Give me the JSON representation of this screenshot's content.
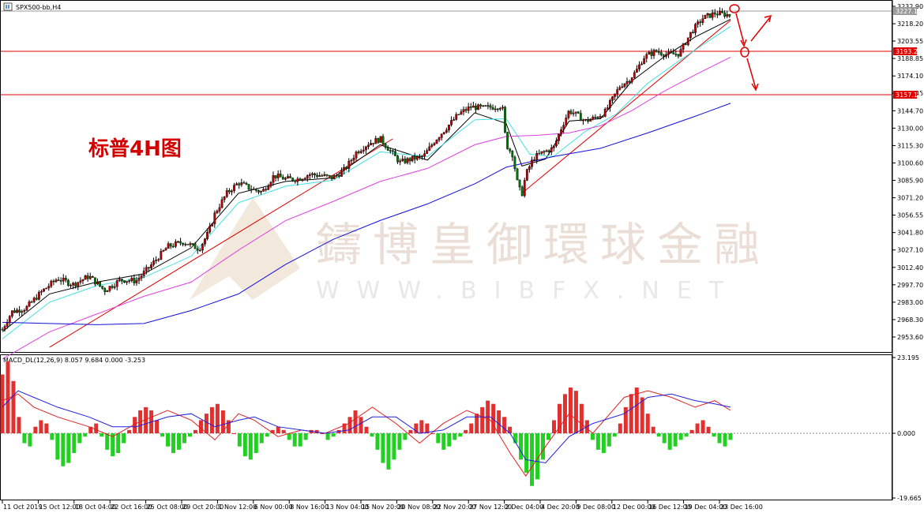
{
  "window": {
    "symbol_title": "SPX500-bb,H4",
    "icon": "chart-window-icon"
  },
  "annotation": "标普4H图",
  "watermark": {
    "brand": "鑄博皇御環球金融",
    "url": "WWW.BIBFX.NET"
  },
  "price_axis": {
    "ticks": [
      "3232.90",
      "3218.20",
      "3203.55",
      "3188.85",
      "3174.10",
      "3159.45",
      "3144.70",
      "3130.00",
      "3115.30",
      "3100.60",
      "3085.90",
      "3071.20",
      "3056.55",
      "3041.80",
      "3027.10",
      "3012.40",
      "2997.70",
      "2983.00",
      "2968.30",
      "2953.60"
    ],
    "current_price": "3227.18",
    "resistance_label": "3193.21",
    "support_label": "3157.14"
  },
  "macd_panel": {
    "title": "MACD_DL(12,26,9) 8.057 9.684 0.000 -3.253",
    "ticks": [
      "23.195",
      "0.000",
      "-19.665"
    ]
  },
  "time_axis": {
    "labels": [
      "11 Oct 2019",
      "15 Oct 12:00",
      "18 Oct 04:00",
      "22 Oct 16:00",
      "25 Oct 08:00",
      "29 Oct 20:00",
      "1 Nov 12:00",
      "6 Nov 00:00",
      "8 Nov 16:00",
      "13 Nov 04:00",
      "15 Nov 20:00",
      "20 Nov 08:00",
      "22 Nov 20:00",
      "27 Nov 12:00",
      "2 Dec 04:00",
      "4 Dec 20:00",
      "9 Dec 08:00",
      "12 Dec 00:00",
      "16 Dec 12:00",
      "19 Dec 04:00",
      "23 Dec 16:00"
    ]
  },
  "chart_data": {
    "type": "line",
    "symbol": "SPX500-bb",
    "timeframe": "H4",
    "ylim": [
      2945,
      3236
    ],
    "horizontal_levels": [
      3193.21,
      3157.14
    ],
    "price_path": [
      [
        0,
        2960
      ],
      [
        12,
        2975
      ],
      [
        30,
        2978
      ],
      [
        50,
        2992
      ],
      [
        70,
        3003
      ],
      [
        90,
        2998
      ],
      [
        110,
        3005
      ],
      [
        130,
        2993
      ],
      [
        150,
        3002
      ],
      [
        170,
        3001
      ],
      [
        190,
        3015
      ],
      [
        210,
        3030
      ],
      [
        230,
        3034
      ],
      [
        250,
        3028
      ],
      [
        262,
        3042
      ],
      [
        270,
        3058
      ],
      [
        285,
        3075
      ],
      [
        300,
        3084
      ],
      [
        315,
        3079
      ],
      [
        330,
        3076
      ],
      [
        345,
        3090
      ],
      [
        360,
        3087
      ],
      [
        375,
        3087
      ],
      [
        390,
        3091
      ],
      [
        405,
        3090
      ],
      [
        420,
        3088
      ],
      [
        435,
        3095
      ],
      [
        450,
        3110
      ],
      [
        465,
        3117
      ],
      [
        480,
        3121
      ],
      [
        495,
        3109
      ],
      [
        505,
        3101
      ],
      [
        520,
        3104
      ],
      [
        535,
        3106
      ],
      [
        550,
        3120
      ],
      [
        565,
        3131
      ],
      [
        580,
        3142
      ],
      [
        595,
        3148
      ],
      [
        610,
        3147
      ],
      [
        625,
        3148
      ],
      [
        635,
        3149
      ],
      [
        640,
        3116
      ],
      [
        648,
        3108
      ],
      [
        655,
        3081
      ],
      [
        660,
        3074
      ],
      [
        665,
        3091
      ],
      [
        670,
        3098
      ],
      [
        675,
        3105
      ],
      [
        685,
        3109
      ],
      [
        700,
        3113
      ],
      [
        710,
        3130
      ],
      [
        720,
        3145
      ],
      [
        730,
        3141
      ],
      [
        740,
        3136
      ],
      [
        750,
        3138
      ],
      [
        765,
        3143
      ],
      [
        778,
        3158
      ],
      [
        785,
        3166
      ],
      [
        795,
        3170
      ],
      [
        805,
        3178
      ],
      [
        815,
        3190
      ],
      [
        830,
        3195
      ],
      [
        845,
        3192
      ],
      [
        860,
        3193
      ],
      [
        875,
        3211
      ],
      [
        890,
        3223
      ],
      [
        905,
        3227
      ],
      [
        920,
        3226
      ],
      [
        925,
        3225
      ]
    ],
    "ma_lines": [
      {
        "name": "fast",
        "color": "#000000",
        "points": [
          [
            0,
            2958
          ],
          [
            60,
            2990
          ],
          [
            120,
            3000
          ],
          [
            180,
            3007
          ],
          [
            240,
            3029
          ],
          [
            300,
            3075
          ],
          [
            360,
            3085
          ],
          [
            420,
            3088
          ],
          [
            480,
            3116
          ],
          [
            540,
            3103
          ],
          [
            600,
            3143
          ],
          [
            640,
            3134
          ],
          [
            660,
            3098
          ],
          [
            690,
            3104
          ],
          [
            720,
            3136
          ],
          [
            760,
            3138
          ],
          [
            800,
            3170
          ],
          [
            840,
            3190
          ],
          [
            880,
            3207
          ],
          [
            925,
            3222
          ]
        ]
      },
      {
        "name": "cyan",
        "color": "#40e0e0",
        "points": [
          [
            0,
            2952
          ],
          [
            60,
            2983
          ],
          [
            120,
            2997
          ],
          [
            180,
            3004
          ],
          [
            240,
            3022
          ],
          [
            300,
            3067
          ],
          [
            360,
            3081
          ],
          [
            420,
            3086
          ],
          [
            480,
            3110
          ],
          [
            540,
            3106
          ],
          [
            600,
            3137
          ],
          [
            640,
            3138
          ],
          [
            670,
            3108
          ],
          [
            700,
            3106
          ],
          [
            740,
            3127
          ],
          [
            780,
            3142
          ],
          [
            820,
            3168
          ],
          [
            860,
            3187
          ],
          [
            900,
            3205
          ],
          [
            925,
            3216
          ]
        ]
      },
      {
        "name": "magenta",
        "color": "#e040e0",
        "points": [
          [
            0,
            2935
          ],
          [
            60,
            2958
          ],
          [
            120,
            2973
          ],
          [
            180,
            2988
          ],
          [
            240,
            3000
          ],
          [
            300,
            3027
          ],
          [
            360,
            3052
          ],
          [
            420,
            3068
          ],
          [
            480,
            3085
          ],
          [
            540,
            3096
          ],
          [
            600,
            3116
          ],
          [
            640,
            3123
          ],
          [
            680,
            3124
          ],
          [
            720,
            3126
          ],
          [
            760,
            3132
          ],
          [
            800,
            3145
          ],
          [
            840,
            3161
          ],
          [
            880,
            3175
          ],
          [
            925,
            3190
          ]
        ]
      },
      {
        "name": "blue",
        "color": "#1010e0",
        "points": [
          [
            0,
            2966
          ],
          [
            60,
            2965
          ],
          [
            120,
            2964
          ],
          [
            180,
            2965
          ],
          [
            240,
            2976
          ],
          [
            300,
            2990
          ],
          [
            360,
            3015
          ],
          [
            420,
            3036
          ],
          [
            480,
            3052
          ],
          [
            540,
            3066
          ],
          [
            600,
            3083
          ],
          [
            640,
            3097
          ],
          [
            700,
            3106
          ],
          [
            760,
            3113
          ],
          [
            820,
            3126
          ],
          [
            880,
            3140
          ],
          [
            925,
            3151
          ]
        ]
      }
    ],
    "trendlines": [
      [
        60,
        2945,
        496,
        3121
      ],
      [
        660,
        3075,
        925,
        3221
      ]
    ],
    "macd_ylim": [
      -19.665,
      23.195
    ],
    "macd_hist": [
      18,
      22,
      16,
      5,
      -3,
      -4,
      2,
      4,
      3,
      -2,
      -8,
      -10,
      -9,
      -6,
      -3,
      -1,
      2,
      3,
      -1,
      -5,
      -7,
      -6,
      -3,
      1,
      5,
      7,
      8,
      7,
      4,
      -1,
      -4,
      -6,
      -5,
      -3,
      -1,
      1,
      4,
      6,
      8,
      9,
      7,
      4,
      0,
      -4,
      -7,
      -8,
      -6,
      -3,
      -1,
      1,
      2,
      1,
      -2,
      -4,
      -4,
      -2,
      1,
      1,
      0,
      -2,
      -1,
      1,
      3,
      5,
      7,
      5,
      2,
      -1,
      -5,
      -9,
      -11,
      -8,
      -5,
      -2,
      1,
      3,
      4,
      3,
      0,
      -3,
      -5,
      -4,
      -2,
      -1,
      1,
      3,
      6,
      8,
      10,
      9,
      7,
      5,
      2,
      -3,
      -8,
      -12,
      -16,
      -14,
      -8,
      -2,
      4,
      9,
      12,
      14,
      13,
      9,
      4,
      -2,
      -5,
      -6,
      -4,
      -1,
      3,
      8,
      12,
      14,
      11,
      6,
      2,
      -1,
      -3,
      -5,
      -4,
      -2,
      -1,
      1,
      3,
      4,
      2,
      -1,
      -3,
      -4,
      -2
    ],
    "macd_lines": {
      "macd": [
        [
          0,
          10
        ],
        [
          20,
          12
        ],
        [
          40,
          8
        ],
        [
          70,
          5
        ],
        [
          110,
          2
        ],
        [
          140,
          -1
        ],
        [
          170,
          3
        ],
        [
          210,
          7
        ],
        [
          240,
          4
        ],
        [
          270,
          -2
        ],
        [
          300,
          6
        ],
        [
          320,
          4
        ],
        [
          350,
          -1
        ],
        [
          380,
          1
        ],
        [
          410,
          0
        ],
        [
          440,
          3
        ],
        [
          470,
          8
        ],
        [
          500,
          3
        ],
        [
          530,
          -3
        ],
        [
          560,
          3
        ],
        [
          590,
          7
        ],
        [
          620,
          4
        ],
        [
          645,
          -6
        ],
        [
          665,
          -13
        ],
        [
          690,
          -4
        ],
        [
          720,
          6
        ],
        [
          750,
          0
        ],
        [
          790,
          11
        ],
        [
          820,
          13
        ],
        [
          850,
          11
        ],
        [
          880,
          8
        ],
        [
          905,
          10
        ],
        [
          925,
          7
        ]
      ],
      "signal": [
        [
          0,
          8
        ],
        [
          20,
          13
        ],
        [
          40,
          11
        ],
        [
          70,
          8
        ],
        [
          110,
          5
        ],
        [
          140,
          2
        ],
        [
          170,
          2
        ],
        [
          210,
          5
        ],
        [
          240,
          6
        ],
        [
          270,
          2
        ],
        [
          300,
          4
        ],
        [
          320,
          5
        ],
        [
          350,
          2
        ],
        [
          380,
          1
        ],
        [
          410,
          0
        ],
        [
          440,
          1
        ],
        [
          470,
          5
        ],
        [
          500,
          5
        ],
        [
          530,
          0
        ],
        [
          560,
          1
        ],
        [
          590,
          5
        ],
        [
          620,
          5
        ],
        [
          645,
          0
        ],
        [
          665,
          -8
        ],
        [
          690,
          -9
        ],
        [
          720,
          -1
        ],
        [
          750,
          3
        ],
        [
          790,
          6
        ],
        [
          820,
          11
        ],
        [
          850,
          12
        ],
        [
          880,
          10
        ],
        [
          905,
          9
        ],
        [
          925,
          8
        ]
      ]
    },
    "arrows_note": [
      "up",
      "down"
    ]
  }
}
